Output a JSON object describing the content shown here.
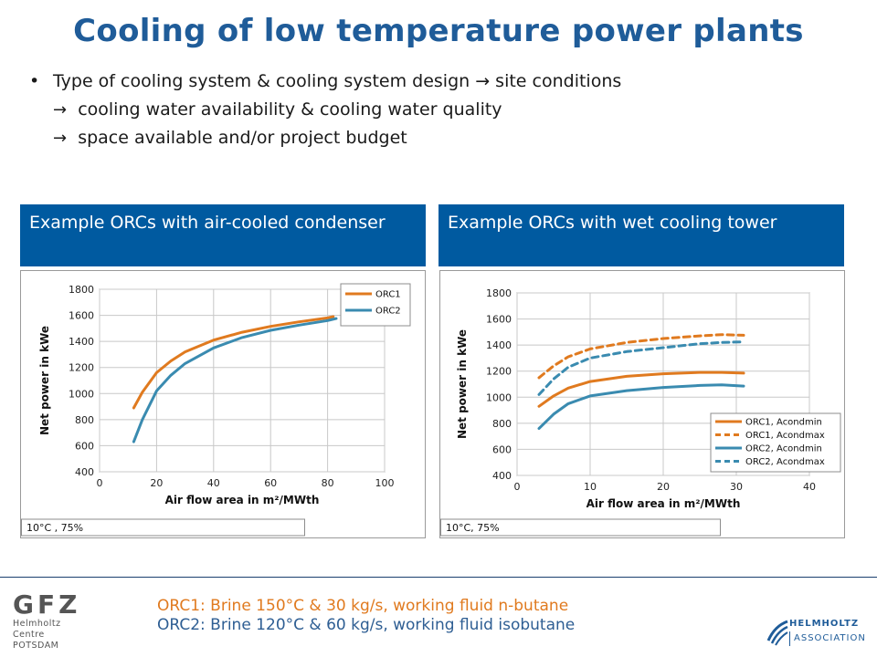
{
  "slide": {
    "title": "Cooling of low temperature power plants",
    "bullet": "Type of cooling system & cooling system design → site conditions",
    "sub_lines": [
      "cooling water availability & cooling water quality",
      "space available and/or project budget"
    ],
    "panels": [
      {
        "header": "Example ORCs with air-cooled condenser"
      },
      {
        "header": "Example ORCs with wet cooling tower"
      }
    ],
    "footer": {
      "line1_lead": "ORC1:",
      "line1": " Brine 150°C & 30 kg/s, working fluid n-butane",
      "line2_lead": "ORC2:",
      "line2": " Brine 120°C & 60 kg/s, working fluid isobutane"
    },
    "logos": {
      "gfz_big": "GFZ",
      "gfz_line1": "Helmholtz Centre",
      "gfz_line2": "POTSDAM",
      "helmholtz_line1": "HELMHOLTZ",
      "helmholtz_line2": "ASSOCIATION"
    }
  },
  "chart_data": [
    {
      "type": "line",
      "xlabel": "Air flow area in m²/MWth",
      "ylabel": "Net power in kWe",
      "xlim": [
        0,
        100
      ],
      "ylim": [
        400,
        1800
      ],
      "xticks": [
        0,
        20,
        40,
        60,
        80,
        100
      ],
      "yticks": [
        400,
        600,
        800,
        1000,
        1200,
        1400,
        1600,
        1800
      ],
      "grid": true,
      "legend": "top-right",
      "note": "10°C , 75%",
      "series": [
        {
          "name": "ORC1",
          "color": "#e07a1f",
          "dash": false,
          "x": [
            12,
            15,
            20,
            25,
            30,
            40,
            50,
            60,
            70,
            80,
            82
          ],
          "y": [
            890,
            1010,
            1160,
            1250,
            1320,
            1410,
            1470,
            1515,
            1550,
            1580,
            1590
          ]
        },
        {
          "name": "ORC2",
          "color": "#3a8bb0",
          "dash": false,
          "x": [
            12,
            15,
            20,
            25,
            30,
            40,
            50,
            60,
            70,
            80,
            83
          ],
          "y": [
            630,
            800,
            1020,
            1140,
            1230,
            1350,
            1430,
            1485,
            1525,
            1560,
            1575
          ]
        }
      ]
    },
    {
      "type": "line",
      "xlabel": "Air flow area in m²/MWth",
      "ylabel": "Net power in kWe",
      "xlim": [
        0,
        40
      ],
      "ylim": [
        400,
        1800
      ],
      "xticks": [
        0,
        10,
        20,
        30,
        40
      ],
      "yticks": [
        400,
        600,
        800,
        1000,
        1200,
        1400,
        1600,
        1800
      ],
      "grid": true,
      "legend": "bottom-right",
      "note": "10°C, 75%",
      "series": [
        {
          "name": "ORC1, Acondmin",
          "color": "#e07a1f",
          "dash": false,
          "x": [
            3,
            5,
            7,
            10,
            15,
            20,
            25,
            28,
            31
          ],
          "y": [
            930,
            1010,
            1070,
            1120,
            1160,
            1180,
            1190,
            1190,
            1185
          ]
        },
        {
          "name": "ORC1, Acondmax",
          "color": "#e07a1f",
          "dash": true,
          "x": [
            3,
            5,
            7,
            10,
            15,
            20,
            25,
            28,
            31
          ],
          "y": [
            1150,
            1240,
            1310,
            1370,
            1420,
            1450,
            1470,
            1480,
            1475
          ]
        },
        {
          "name": "ORC2, Acondmin",
          "color": "#3a8bb0",
          "dash": false,
          "x": [
            3,
            5,
            7,
            10,
            15,
            20,
            25,
            28,
            31
          ],
          "y": [
            760,
            870,
            950,
            1010,
            1050,
            1075,
            1090,
            1095,
            1085
          ]
        },
        {
          "name": "ORC2, Acondmax",
          "color": "#3a8bb0",
          "dash": true,
          "x": [
            3,
            5,
            7,
            10,
            15,
            20,
            25,
            28,
            31
          ],
          "y": [
            1020,
            1140,
            1230,
            1300,
            1350,
            1380,
            1410,
            1420,
            1425
          ]
        }
      ]
    }
  ]
}
